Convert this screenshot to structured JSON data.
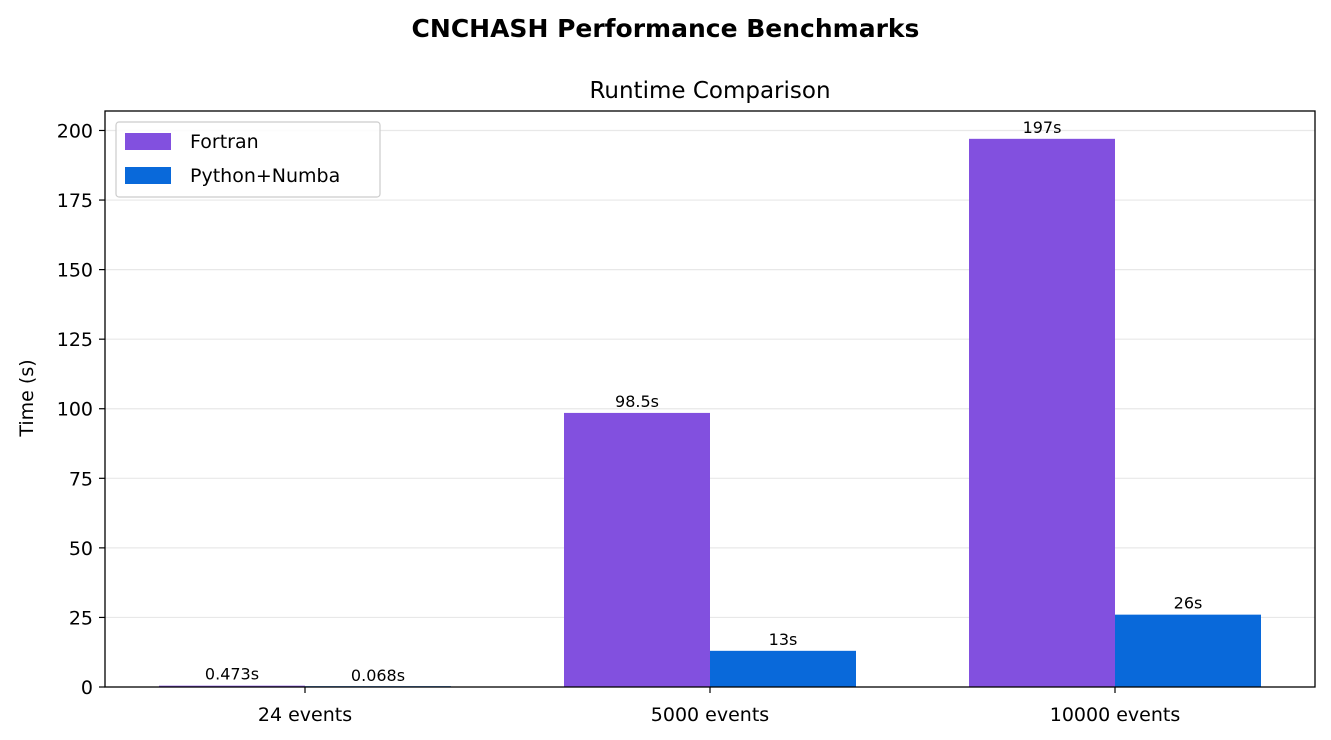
{
  "chart_data": {
    "type": "bar",
    "suptitle": "CNCHASH Performance Benchmarks",
    "title": "Runtime Comparison",
    "xlabel": "",
    "ylabel": "Time (s)",
    "categories": [
      "24 events",
      "5000 events",
      "10000 events"
    ],
    "series": [
      {
        "name": "Fortran",
        "color": "#8250df",
        "values": [
          0.473,
          98.5,
          197
        ],
        "labels": [
          "0.473s",
          "98.5s",
          "197s"
        ]
      },
      {
        "name": "Python+Numba",
        "color": "#0969da",
        "values": [
          0.068,
          13,
          26
        ],
        "labels": [
          "0.068s",
          "13s",
          "26s"
        ]
      }
    ],
    "ylim": [
      0,
      207
    ],
    "yticks": [
      0,
      25,
      50,
      75,
      100,
      125,
      150,
      175,
      200
    ],
    "grid": true,
    "legend_position": "top-left"
  }
}
